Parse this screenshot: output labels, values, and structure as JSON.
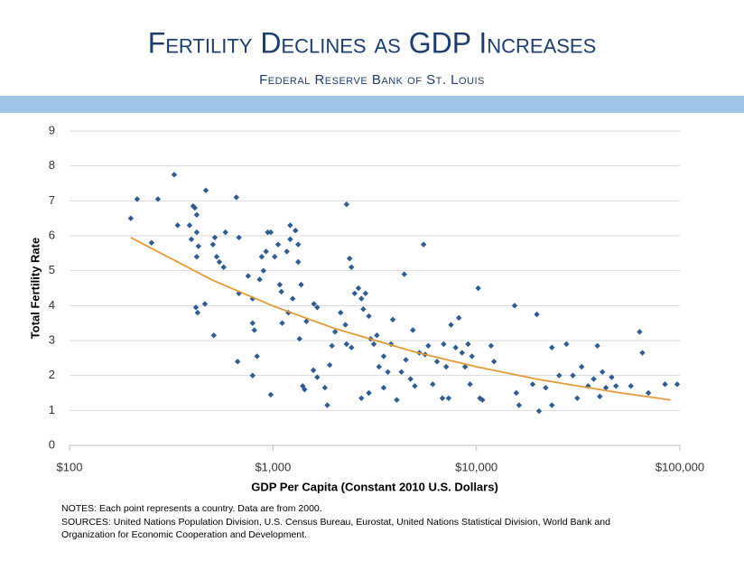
{
  "chart_data": {
    "type": "scatter",
    "title": "Fertility Declines as GDP Increases",
    "subtitle": "Federal Reserve Bank of St. Louis",
    "x_label": "GDP Per Capita (Constant 2010 U.S. Dollars)",
    "y_label": "Total Fertility Rate",
    "x_log": true,
    "grid": true,
    "xlim": [
      100,
      100000
    ],
    "ylim": [
      0,
      9
    ],
    "xticks": [
      {
        "value": 100,
        "label": "$100"
      },
      {
        "value": 1000,
        "label": "$1,000"
      },
      {
        "value": 10000,
        "label": "$10,000"
      },
      {
        "value": 100000,
        "label": "$100,000"
      }
    ],
    "yticks": [
      0,
      1,
      2,
      3,
      4,
      5,
      6,
      7,
      8,
      9
    ],
    "series": [
      {
        "type": "scatter",
        "color": "#2f5b8f",
        "x": [
          200,
          215,
          272,
          253,
          327,
          340,
          389,
          405,
          413,
          422,
          397,
          422,
          430,
          422,
          468,
          418,
          426,
          463,
          507,
          518,
          529,
          545,
          572,
          584,
          512,
          661,
          680,
          670,
          680,
          755,
          794,
          794,
          810,
          794,
          835,
          881,
          925,
          898,
          860,
          942,
          975,
          975,
          1020,
          1080,
          1060,
          1100,
          1170,
          1215,
          1215,
          1190,
          1250,
          1290,
          1330,
          1330,
          1375,
          1460,
          1110,
          1350,
          1400,
          1430,
          1590,
          1650,
          1580,
          1650,
          1800,
          1850,
          1900,
          1950,
          2020,
          2150,
          2270,
          2300,
          2380,
          2430,
          2300,
          2430,
          2520,
          2630,
          2720,
          2780,
          2850,
          2720,
          2960,
          2960,
          3020,
          3130,
          3240,
          3320,
          3500,
          3500,
          3670,
          3800,
          3880,
          4060,
          4280,
          4420,
          4500,
          4740,
          4870,
          4980,
          5240,
          5500,
          5600,
          5800,
          6100,
          6400,
          6800,
          6900,
          7100,
          7300,
          7500,
          7900,
          8200,
          8500,
          8800,
          9100,
          9300,
          9500,
          10200,
          10400,
          10700,
          11800,
          12200,
          15400,
          15700,
          16200,
          18900,
          19800,
          20300,
          21900,
          23500,
          23500,
          25500,
          27700,
          29800,
          31300,
          32900,
          35400,
          37700,
          39300,
          40400,
          41600,
          43300,
          46200,
          48500,
          57400,
          63400,
          65400,
          70000,
          84500,
          97000
        ],
        "values": [
          6.5,
          7.05,
          7.05,
          5.8,
          7.75,
          6.3,
          6.3,
          6.85,
          6.8,
          6.6,
          5.9,
          6.1,
          5.7,
          5.4,
          7.3,
          3.95,
          3.8,
          4.05,
          5.75,
          5.95,
          5.4,
          5.25,
          5.1,
          6.1,
          3.15,
          7.1,
          5.95,
          2.4,
          4.35,
          4.85,
          4.2,
          3.5,
          3.3,
          2.0,
          2.55,
          5.4,
          5.55,
          5.0,
          4.75,
          6.1,
          6.1,
          1.45,
          5.4,
          4.6,
          5.75,
          4.4,
          5.55,
          5.9,
          6.3,
          3.8,
          4.2,
          6.15,
          5.25,
          5.75,
          4.6,
          3.55,
          3.5,
          3.05,
          1.7,
          1.6,
          4.05,
          3.95,
          2.15,
          1.95,
          1.65,
          1.15,
          2.3,
          2.85,
          3.25,
          3.8,
          3.45,
          6.9,
          5.35,
          5.1,
          2.9,
          2.8,
          4.35,
          4.5,
          4.2,
          3.9,
          4.35,
          1.35,
          1.5,
          3.7,
          3.05,
          2.9,
          3.15,
          2.25,
          2.55,
          1.65,
          2.1,
          2.9,
          3.6,
          1.3,
          2.1,
          4.9,
          2.45,
          1.9,
          3.3,
          1.7,
          2.65,
          5.75,
          2.6,
          2.85,
          1.75,
          2.4,
          1.35,
          2.9,
          2.25,
          1.35,
          3.45,
          2.8,
          3.65,
          2.65,
          2.25,
          2.9,
          1.75,
          2.55,
          4.5,
          1.35,
          1.3,
          2.85,
          2.4,
          4.0,
          1.5,
          1.15,
          1.75,
          3.75,
          0.98,
          1.65,
          2.8,
          1.15,
          2.0,
          2.9,
          2.0,
          1.35,
          2.25,
          1.7,
          1.9,
          2.85,
          1.4,
          2.1,
          1.65,
          1.95,
          1.7,
          1.7,
          3.25,
          2.65,
          1.5,
          1.75,
          1.75
        ]
      },
      {
        "type": "line",
        "color": "#e39a3b",
        "x": [
          200,
          500,
          1000,
          2000,
          5000,
          10000,
          20000,
          50000,
          90000
        ],
        "values": [
          5.95,
          4.74,
          3.99,
          3.35,
          2.67,
          2.25,
          1.89,
          1.51,
          1.3
        ]
      }
    ],
    "notes": [
      "NOTES: Each point represents a country. Data are from 2000.",
      "SOURCES: United Nations Population Division, U.S. Census Bureau, Eurostat, United Nations Statistical Division, World Bank and",
      "Organization for Economic Cooperation and Development."
    ]
  }
}
